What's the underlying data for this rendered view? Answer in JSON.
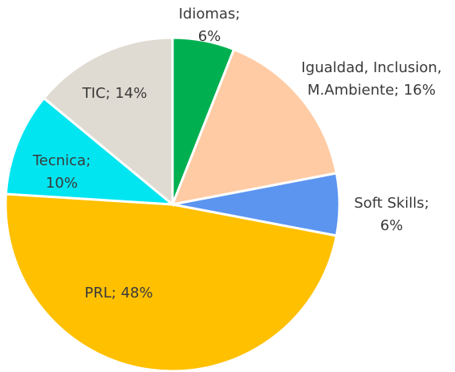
{
  "chart_data": {
    "type": "pie",
    "values": [
      6,
      16,
      6,
      48,
      10,
      14
    ],
    "value_labels": [
      [
        "Idiomas;",
        "6%"
      ],
      [
        "Igualdad, Inclusion,",
        "M.Ambiente; 16%"
      ],
      [
        "Soft Skills;",
        "6%"
      ],
      [
        "PRL; 48%"
      ],
      [
        "Tecnica;",
        "10%"
      ],
      [
        "TIC; 14%"
      ]
    ],
    "colors": [
      "#00b050",
      "#ffcba4",
      "#5b95f0",
      "#ffc000",
      "#00e5f0",
      "#e0dbd2"
    ]
  }
}
